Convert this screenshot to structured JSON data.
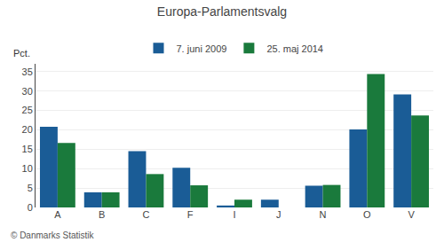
{
  "chart_data": {
    "type": "bar",
    "title": "Europa-Parlamentsvalg",
    "ylabel": "Pct.",
    "annotations": [
      "© Danmarks Statistik"
    ],
    "categories": [
      "A",
      "B",
      "C",
      "F",
      "I",
      "J",
      "N",
      "O",
      "V"
    ],
    "series": [
      {
        "name": "7. juni 2009",
        "color": "#1a5c96",
        "values": [
          20.8,
          3.9,
          14.5,
          10.2,
          0.5,
          2.0,
          5.6,
          20.1,
          29.1
        ]
      },
      {
        "name": "25. maj 2014",
        "color": "#1a7a3c",
        "values": [
          16.6,
          3.9,
          8.6,
          5.7,
          2.0,
          0.0,
          5.8,
          34.4,
          23.7
        ]
      }
    ],
    "ylim": [
      0,
      37
    ],
    "yticks": [
      0,
      5,
      10,
      15,
      20,
      25,
      30,
      35
    ],
    "grid": true,
    "legend": "top"
  }
}
